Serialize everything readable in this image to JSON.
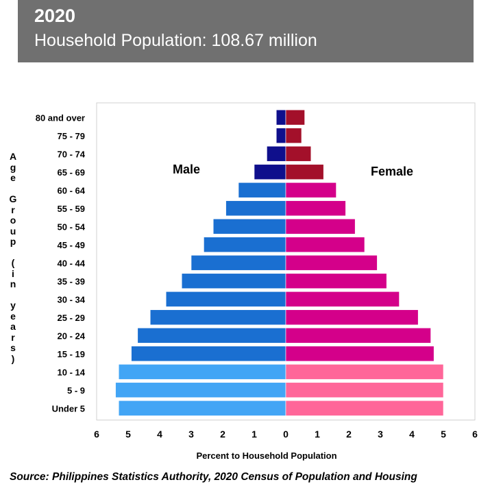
{
  "header": {
    "year": "2020",
    "subtitle": "Household Population: 108.67 million"
  },
  "source": "Source: Philippines Statistics Authority, 2020 Census of Population and Housing",
  "chart_data": {
    "type": "bar",
    "orientation": "horizontal-population-pyramid",
    "ylabel": "Age Group (in years)",
    "xlabel": "Percent to Household Population",
    "xlim": [
      -6,
      6
    ],
    "x_ticks": [
      "6",
      "5",
      "4",
      "3",
      "2",
      "1",
      "0",
      "1",
      "2",
      "3",
      "4",
      "5",
      "6"
    ],
    "categories": [
      "80 and over",
      "75 - 79",
      "70 - 74",
      "65 - 69",
      "60 - 64",
      "55 - 59",
      "50 - 54",
      "45 - 49",
      "40 - 44",
      "35 - 39",
      "30 - 34",
      "25 - 29",
      "20 - 24",
      "15 - 19",
      "10 - 14",
      "5 - 9",
      "Under 5"
    ],
    "series": [
      {
        "name": "Male",
        "values": [
          0.3,
          0.3,
          0.6,
          1.0,
          1.5,
          1.9,
          2.3,
          2.6,
          3.0,
          3.3,
          3.8,
          4.3,
          4.7,
          4.9,
          5.3,
          5.4,
          5.3
        ],
        "colors": [
          "#0f0f8c",
          "#0f0f8c",
          "#0f0f8c",
          "#0f0f8c",
          "#1a6fd1",
          "#1a6fd1",
          "#1a6fd1",
          "#1a6fd1",
          "#1a6fd1",
          "#1a6fd1",
          "#1a6fd1",
          "#1a6fd1",
          "#1a6fd1",
          "#1a6fd1",
          "#42a5f5",
          "#42a5f5",
          "#42a5f5"
        ]
      },
      {
        "name": "Female",
        "values": [
          0.6,
          0.5,
          0.8,
          1.2,
          1.6,
          1.9,
          2.2,
          2.5,
          2.9,
          3.2,
          3.6,
          4.2,
          4.6,
          4.7,
          5.0,
          5.0,
          5.0
        ],
        "colors": [
          "#a3102a",
          "#a3102a",
          "#a3102a",
          "#a3102a",
          "#d4008a",
          "#d4008a",
          "#d4008a",
          "#d4008a",
          "#d4008a",
          "#d4008a",
          "#d4008a",
          "#d4008a",
          "#d4008a",
          "#d4008a",
          "#ff6699",
          "#ff6699",
          "#ff6699"
        ]
      }
    ],
    "grid": false
  }
}
